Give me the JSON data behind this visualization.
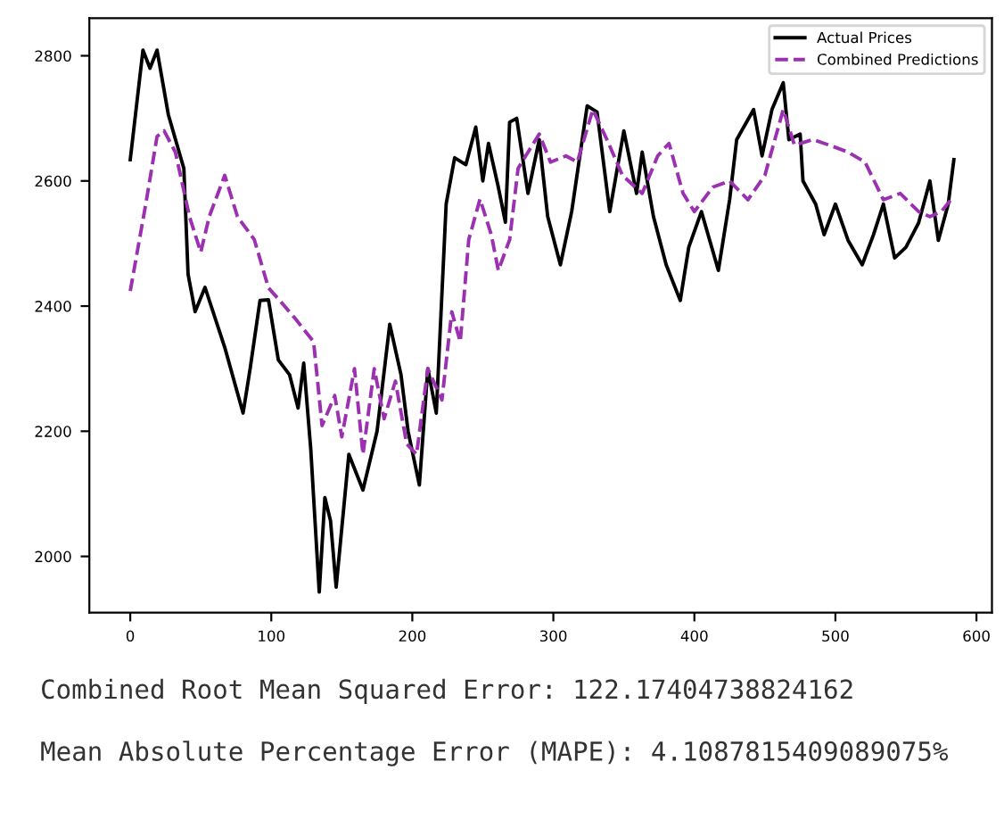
{
  "chart_data": {
    "type": "line",
    "xlim": [
      -29,
      611
    ],
    "ylim": [
      1910,
      2860
    ],
    "xticks": [
      0,
      100,
      200,
      300,
      400,
      500,
      600
    ],
    "yticks": [
      2000,
      2200,
      2400,
      2600,
      2800
    ],
    "legend": "top right",
    "grid": false,
    "series": [
      {
        "name": "Actual Prices",
        "color": "#000000",
        "line_style": "solid",
        "x": [
          0,
          9,
          14,
          19,
          27,
          38,
          41,
          46,
          53,
          67,
          80,
          85,
          92,
          98,
          105,
          113,
          119,
          123,
          128,
          134,
          138,
          142,
          146,
          155,
          165,
          175,
          184,
          192,
          197,
          205,
          211,
          217,
          224,
          230,
          238,
          245,
          250,
          254,
          261,
          266,
          269,
          274,
          282,
          290,
          296,
          305,
          313,
          324,
          331,
          340,
          350,
          359,
          363,
          371,
          380,
          390,
          396,
          405,
          417,
          425,
          430,
          442,
          448,
          455,
          463,
          467,
          475,
          477,
          486,
          492,
          500,
          509,
          519,
          527,
          534,
          542,
          550,
          559,
          567,
          573,
          580,
          584
        ],
        "values": [
          2634,
          2809,
          2780,
          2809,
          2706,
          2620,
          2451,
          2391,
          2430,
          2334,
          2229,
          2300,
          2409,
          2410,
          2314,
          2290,
          2237,
          2309,
          2171,
          1943,
          2094,
          2057,
          1951,
          2163,
          2106,
          2200,
          2371,
          2290,
          2200,
          2114,
          2300,
          2229,
          2563,
          2637,
          2626,
          2686,
          2600,
          2660,
          2590,
          2534,
          2694,
          2700,
          2580,
          2666,
          2543,
          2466,
          2551,
          2720,
          2710,
          2551,
          2680,
          2580,
          2646,
          2543,
          2466,
          2409,
          2494,
          2551,
          2457,
          2570,
          2666,
          2714,
          2640,
          2714,
          2757,
          2666,
          2675,
          2600,
          2563,
          2514,
          2563,
          2505,
          2466,
          2514,
          2563,
          2477,
          2494,
          2533,
          2600,
          2505,
          2563,
          2634
        ]
      },
      {
        "name": "Combined Predictions",
        "color": "#9b30b0",
        "line_style": "dashed",
        "x": [
          0,
          11,
          19,
          24,
          32,
          42,
          50,
          56,
          67,
          76,
          88,
          98,
          106,
          117,
          130,
          136,
          145,
          150,
          159,
          165,
          173,
          180,
          188,
          196,
          203,
          211,
          221,
          228,
          234,
          240,
          248,
          256,
          261,
          269,
          275,
          290,
          298,
          309,
          317,
          328,
          338,
          349,
          363,
          374,
          382,
          392,
          400,
          413,
          425,
          438,
          450,
          463,
          471,
          484,
          496,
          509,
          521,
          534,
          546,
          559,
          567,
          575,
          582
        ],
        "values": [
          2424,
          2563,
          2671,
          2680,
          2646,
          2543,
          2486,
          2543,
          2609,
          2543,
          2506,
          2429,
          2409,
          2380,
          2343,
          2209,
          2257,
          2191,
          2300,
          2163,
          2300,
          2220,
          2280,
          2180,
          2163,
          2300,
          2250,
          2391,
          2343,
          2506,
          2571,
          2514,
          2457,
          2506,
          2620,
          2675,
          2630,
          2640,
          2630,
          2714,
          2666,
          2609,
          2580,
          2640,
          2660,
          2580,
          2551,
          2590,
          2600,
          2570,
          2609,
          2714,
          2657,
          2666,
          2657,
          2646,
          2630,
          2570,
          2580,
          2551,
          2543,
          2551,
          2570
        ]
      }
    ],
    "annotations": [
      "Combined Root Mean Squared Error: 122.17404738824162",
      "Mean Absolute Percentage Error (MAPE): 4.1087815409089075%"
    ]
  }
}
